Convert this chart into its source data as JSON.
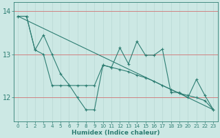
{
  "xlabel": "Humidex (Indice chaleur)",
  "x": [
    0,
    1,
    2,
    3,
    4,
    5,
    6,
    7,
    8,
    9,
    10,
    11,
    12,
    13,
    14,
    15,
    16,
    17,
    18,
    19,
    20,
    21,
    22,
    23
  ],
  "line1": [
    13.88,
    13.88,
    13.1,
    13.45,
    13.0,
    12.55,
    12.3,
    12.0,
    11.72,
    11.72,
    12.75,
    12.7,
    13.15,
    12.78,
    13.3,
    12.98,
    12.98,
    13.12,
    12.12,
    12.12,
    12.0,
    12.42,
    12.05,
    11.72
  ],
  "line2": [
    13.88,
    13.88,
    13.1,
    13.0,
    12.28,
    12.28,
    12.28,
    12.28,
    12.28,
    12.28,
    12.75,
    12.7,
    12.65,
    12.6,
    12.52,
    12.46,
    12.38,
    12.28,
    12.19,
    12.1,
    12.05,
    12.0,
    11.93,
    11.72
  ],
  "trend_x": [
    0,
    23
  ],
  "trend_y": [
    13.88,
    11.72
  ],
  "ylim_bottom": 11.45,
  "ylim_top": 14.2,
  "yticks": [
    12,
    13,
    14
  ],
  "xticks": [
    0,
    1,
    2,
    3,
    4,
    5,
    6,
    7,
    8,
    9,
    10,
    11,
    12,
    13,
    14,
    15,
    16,
    17,
    18,
    19,
    20,
    21,
    22,
    23
  ],
  "line_color": "#2d7d72",
  "bg_color": "#cce8e4",
  "grid_h_color": "#d08080",
  "grid_v_color": "#b8d8d4",
  "tick_label_fontsize": 5.2,
  "xlabel_fontsize": 6.5
}
